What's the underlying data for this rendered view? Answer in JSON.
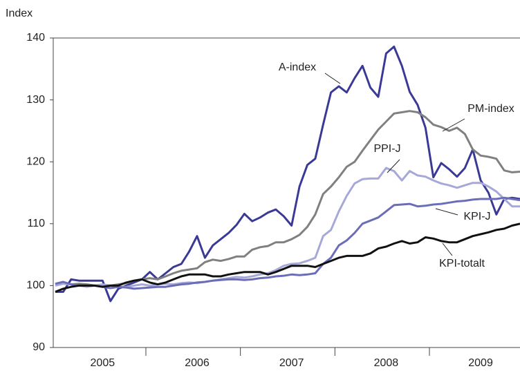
{
  "chart_data": {
    "type": "line",
    "y_label": "Index",
    "categories": [
      null,
      null,
      null,
      null,
      null,
      null,
      "2005",
      null,
      null,
      null,
      null,
      null,
      null,
      null,
      null,
      null,
      null,
      null,
      "2006",
      null,
      null,
      null,
      null,
      null,
      null,
      null,
      null,
      null,
      null,
      null,
      "2007",
      null,
      null,
      null,
      null,
      null,
      null,
      null,
      null,
      null,
      null,
      null,
      "2008",
      null,
      null,
      null,
      null,
      null,
      null,
      null,
      null,
      null,
      null,
      null,
      "2009",
      null,
      null,
      null,
      null,
      null
    ],
    "ylim": [
      90,
      140
    ],
    "yticks": [
      90,
      100,
      110,
      120,
      130,
      140
    ],
    "grid": false,
    "series": [
      {
        "name": "A-index",
        "color": "#3a3a96",
        "values": [
          99,
          99,
          101,
          100.8,
          100.8,
          100.8,
          100.8,
          97.5,
          99.5,
          100,
          100.5,
          101,
          102.2,
          101,
          102,
          103,
          103.5,
          105.5,
          108,
          104.5,
          106.5,
          107.5,
          108.5,
          109.8,
          111.6,
          110.4,
          111,
          111.8,
          112.3,
          111.2,
          109.7,
          116,
          119.5,
          120.5,
          126,
          131.2,
          132.2,
          131.2,
          133.5,
          135.5,
          132,
          130.5,
          137.5,
          138.6,
          135.5,
          131.3,
          129.2,
          125.5,
          117.5,
          119.8,
          118.8,
          117.6,
          119,
          122,
          117,
          115,
          111.5,
          114,
          114.2,
          114
        ]
      },
      {
        "name": "PM-index",
        "color": "#808080",
        "values": [
          100.2,
          100.5,
          100.2,
          100.3,
          100.2,
          100,
          100,
          100,
          100.2,
          100.4,
          100.8,
          101,
          101.2,
          101,
          101.5,
          102,
          102.4,
          102.6,
          102.8,
          103.8,
          104.2,
          104,
          104.3,
          104.7,
          104.7,
          105.8,
          106.2,
          106.4,
          107,
          107,
          107.5,
          108.2,
          109.5,
          111.5,
          114.8,
          116,
          117.5,
          119.2,
          120,
          121.8,
          123.5,
          125.2,
          126.5,
          127.8,
          128,
          128.2,
          128,
          127.2,
          126,
          125.6,
          125,
          125.5,
          124.5,
          122,
          121,
          120.8,
          120.5,
          118.6,
          118.3,
          118.4
        ]
      },
      {
        "name": "PPI-J",
        "color": "#a5a8d8",
        "values": [
          100,
          100.3,
          100.2,
          100,
          99.8,
          100,
          100.2,
          100,
          99.8,
          99.8,
          100,
          100.2,
          100,
          100.2,
          100.3,
          100.2,
          100.4,
          100.5,
          100.4,
          100.6,
          100.8,
          101,
          101.2,
          101.4,
          101.3,
          101.5,
          101.8,
          102,
          102.5,
          103.2,
          103.5,
          103.6,
          104,
          104.5,
          108,
          109,
          112,
          114.5,
          116.5,
          117.2,
          117.3,
          117.3,
          119,
          118.5,
          117,
          118.5,
          117.8,
          117.6,
          117,
          116.5,
          116.2,
          115.8,
          116.2,
          116.6,
          116.6,
          116,
          115.2,
          114,
          112.8,
          112.8
        ]
      },
      {
        "name": "KPI-J",
        "color": "#6b6db8",
        "values": [
          100.3,
          100.6,
          100.2,
          100,
          100,
          100,
          99.8,
          99.6,
          99.8,
          99.7,
          99.5,
          99.6,
          99.7,
          99.8,
          99.8,
          100,
          100.2,
          100.3,
          100.5,
          100.6,
          100.8,
          100.9,
          101,
          101,
          100.9,
          101,
          101.2,
          101.3,
          101.5,
          101.6,
          101.8,
          101.7,
          101.8,
          102,
          103.5,
          104.5,
          106.5,
          107.3,
          108.5,
          110,
          110.5,
          111,
          112,
          113,
          113.1,
          113.2,
          112.8,
          112.9,
          113.1,
          113.2,
          113.4,
          113.6,
          113.7,
          113.9,
          114,
          114,
          114,
          114.2,
          114,
          113.8
        ]
      },
      {
        "name": "KPI-totalt",
        "color": "#111111",
        "values": [
          99,
          99.5,
          99.8,
          100,
          100,
          100,
          99.8,
          100,
          100,
          100.5,
          100.8,
          101,
          100.5,
          100.2,
          100.5,
          101,
          101.5,
          101.8,
          101.8,
          101.8,
          101.5,
          101.5,
          101.8,
          102,
          102.2,
          102.2,
          102.2,
          101.8,
          102.2,
          102.7,
          103.2,
          103.2,
          103.2,
          103,
          103.5,
          104,
          104.5,
          104.8,
          104.8,
          104.8,
          105.2,
          106,
          106.3,
          106.8,
          107.2,
          106.8,
          107,
          107.8,
          107.6,
          107.2,
          107,
          107,
          107.5,
          108,
          108.3,
          108.6,
          109,
          109.2,
          109.7,
          110
        ]
      }
    ]
  }
}
